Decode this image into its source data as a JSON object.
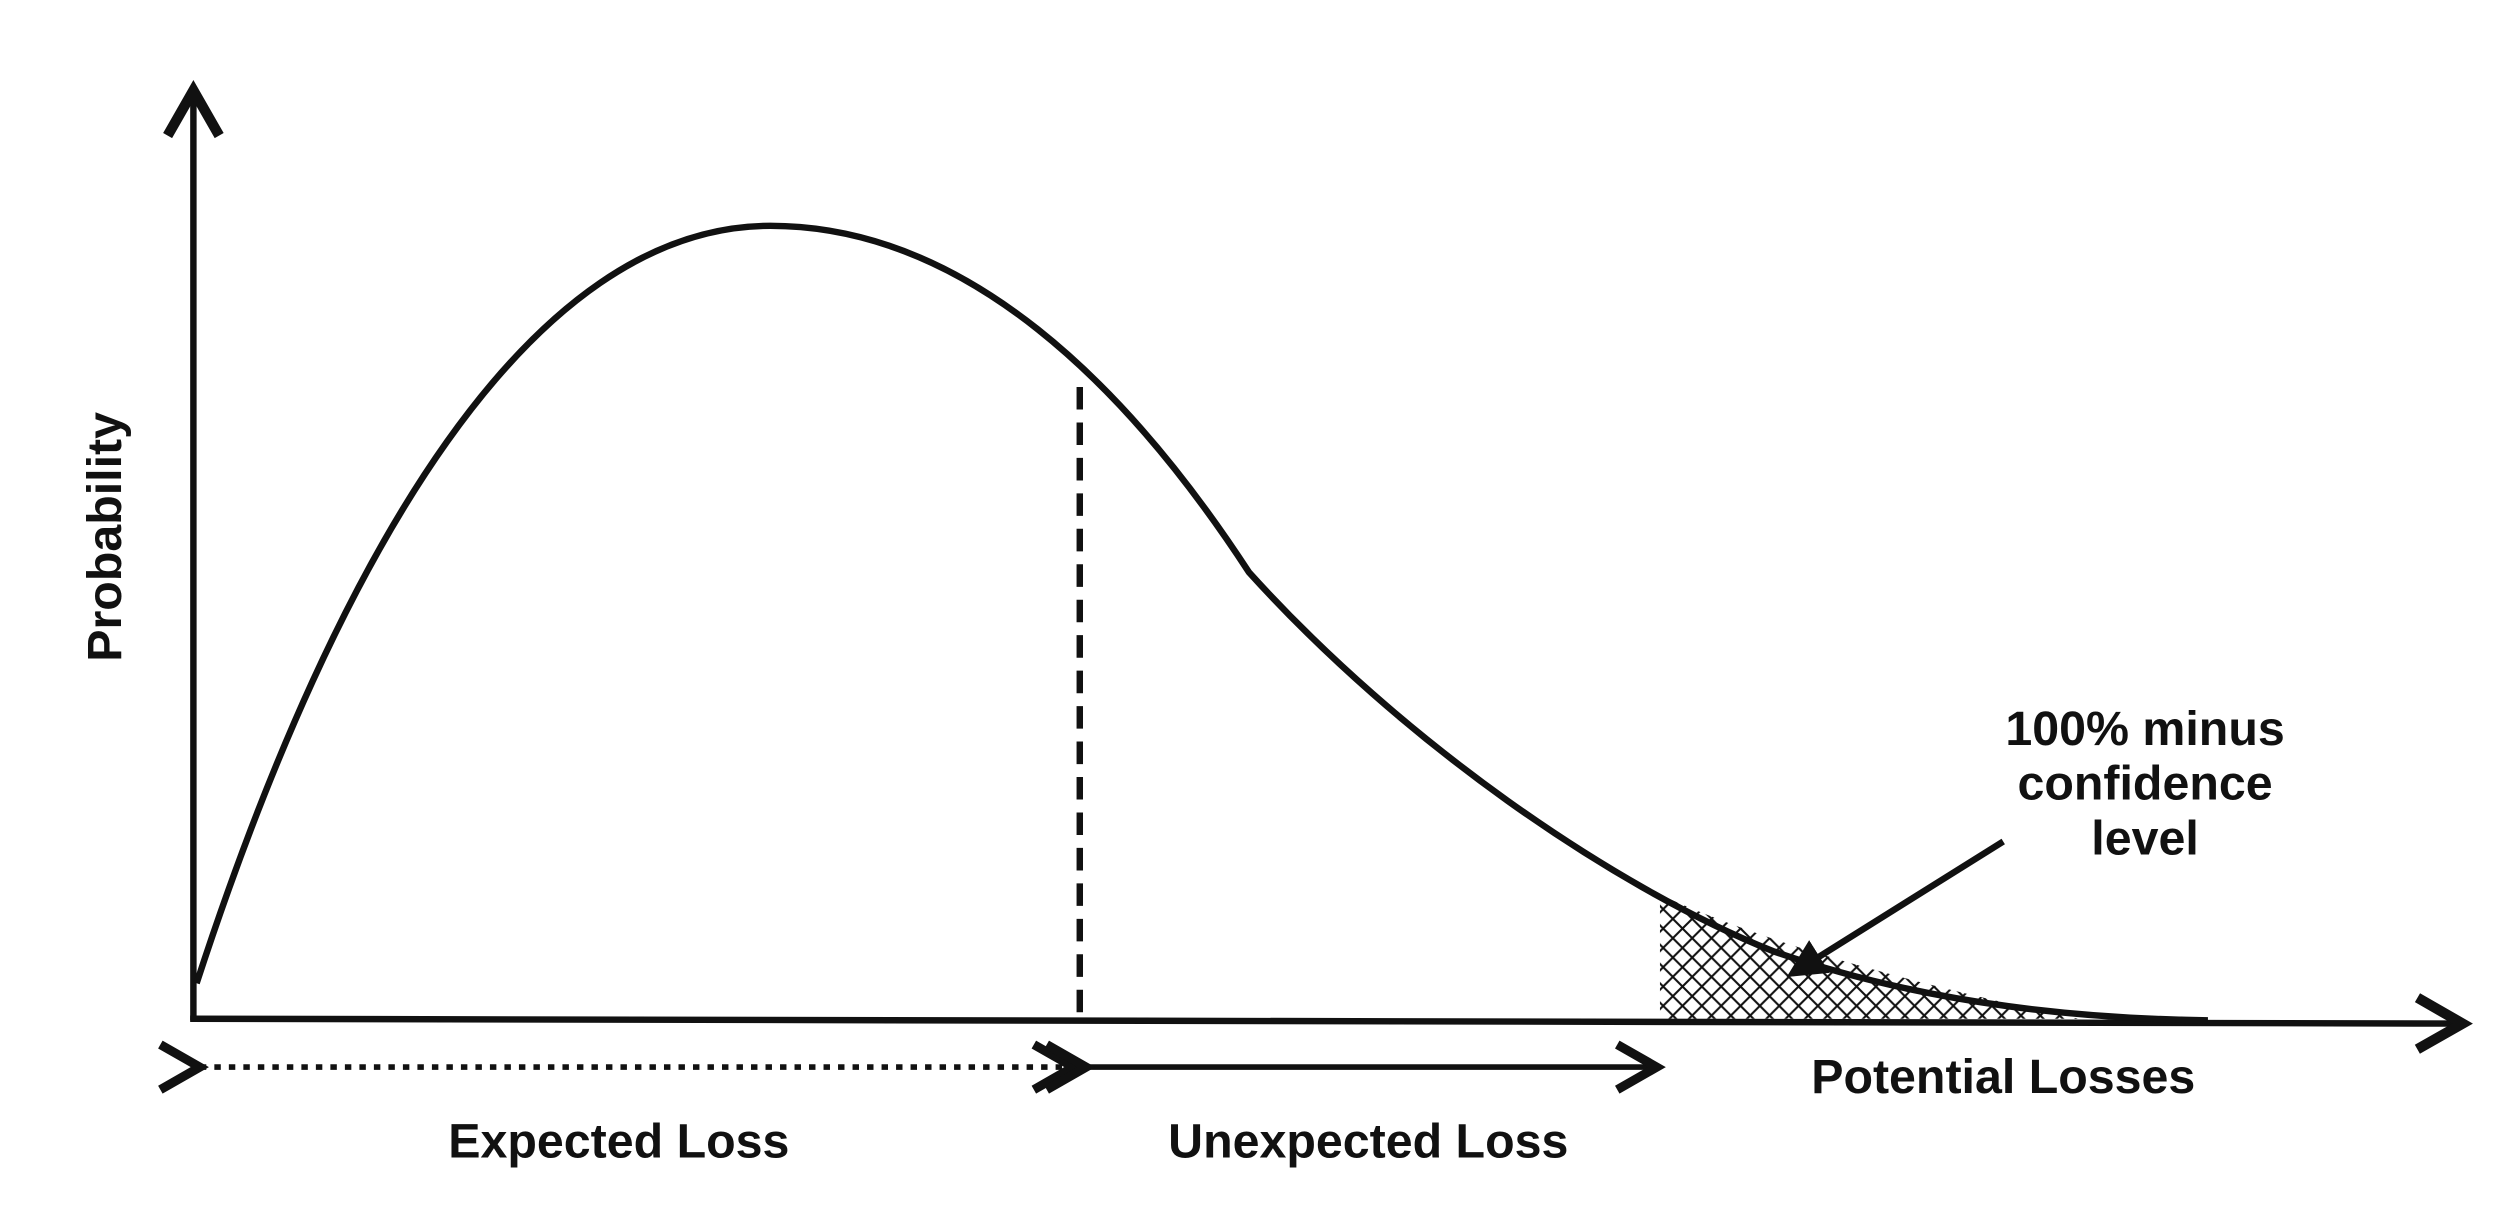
{
  "y_axis_label": "Probability",
  "x_axis_label": "Potential Losses",
  "segments": [
    "Expected Loss",
    "Unexpected Loss"
  ],
  "annotation": {
    "lines": [
      "100% minus",
      "confidence",
      "level"
    ]
  }
}
